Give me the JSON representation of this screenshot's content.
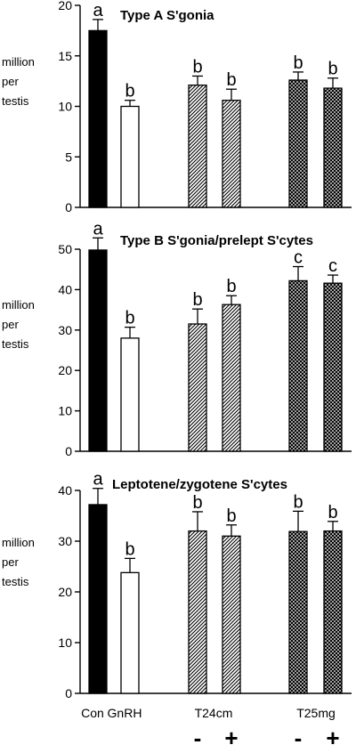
{
  "chart_data": [
    {
      "type": "bar",
      "title": "Type A  S'gonia",
      "ylabel_lines": [
        "million",
        "per",
        "testis"
      ],
      "ylim": [
        0,
        20
      ],
      "yticks": [
        0,
        5,
        10,
        15,
        20
      ],
      "categories": [
        "Con",
        "GnRH",
        "T24cm -",
        "T24cm +",
        "T25mg -",
        "T25mg +"
      ],
      "values": [
        17.5,
        10.0,
        12.1,
        10.6,
        12.6,
        11.8
      ],
      "errors": [
        1.1,
        0.6,
        0.9,
        1.1,
        0.8,
        1.0
      ],
      "letters": [
        "a",
        "b",
        "b",
        "b",
        "b",
        "b"
      ]
    },
    {
      "type": "bar",
      "title": "Type B  S'gonia/prelept S'cytes",
      "ylabel_lines": [
        "million",
        "per",
        "testis"
      ],
      "ylim": [
        0,
        50
      ],
      "yticks": [
        0,
        10,
        20,
        30,
        40,
        50
      ],
      "categories": [
        "Con",
        "GnRH",
        "T24cm -",
        "T24cm +",
        "T25mg -",
        "T25mg +"
      ],
      "values": [
        49.8,
        28.0,
        31.5,
        36.3,
        42.2,
        41.6
      ],
      "errors": [
        3.0,
        2.7,
        3.7,
        2.2,
        3.5,
        2.0
      ],
      "letters": [
        "a",
        "b",
        "b",
        "b",
        "c",
        "c"
      ]
    },
    {
      "type": "bar",
      "title": "Leptotene/zygotene S'cytes",
      "ylabel_lines": [
        "million",
        "per",
        "testis"
      ],
      "ylim": [
        0,
        40
      ],
      "yticks": [
        0,
        10,
        20,
        30,
        40
      ],
      "categories": [
        "Con",
        "GnRH",
        "T24cm -",
        "T24cm +",
        "T25mg -",
        "T25mg +"
      ],
      "values": [
        37.2,
        23.8,
        32.0,
        31.0,
        31.9,
        32.0
      ],
      "errors": [
        3.2,
        2.8,
        3.8,
        2.2,
        4.0,
        1.9
      ],
      "letters": [
        "a",
        "b",
        "b",
        "b",
        "b",
        "b"
      ]
    }
  ],
  "x_axis": {
    "group_labels": [
      "Con",
      "GnRH",
      "T24cm",
      "T25mg"
    ],
    "signs": [
      "-",
      "+",
      "-",
      "+"
    ]
  },
  "bar_styles": [
    "solid-black",
    "open-white",
    "diagonal-hatch",
    "diagonal-hatch",
    "cross-hatch",
    "cross-hatch"
  ],
  "colors": {
    "bar_solid": "#000000",
    "bar_open": "#ffffff",
    "hatch": "#000000"
  }
}
